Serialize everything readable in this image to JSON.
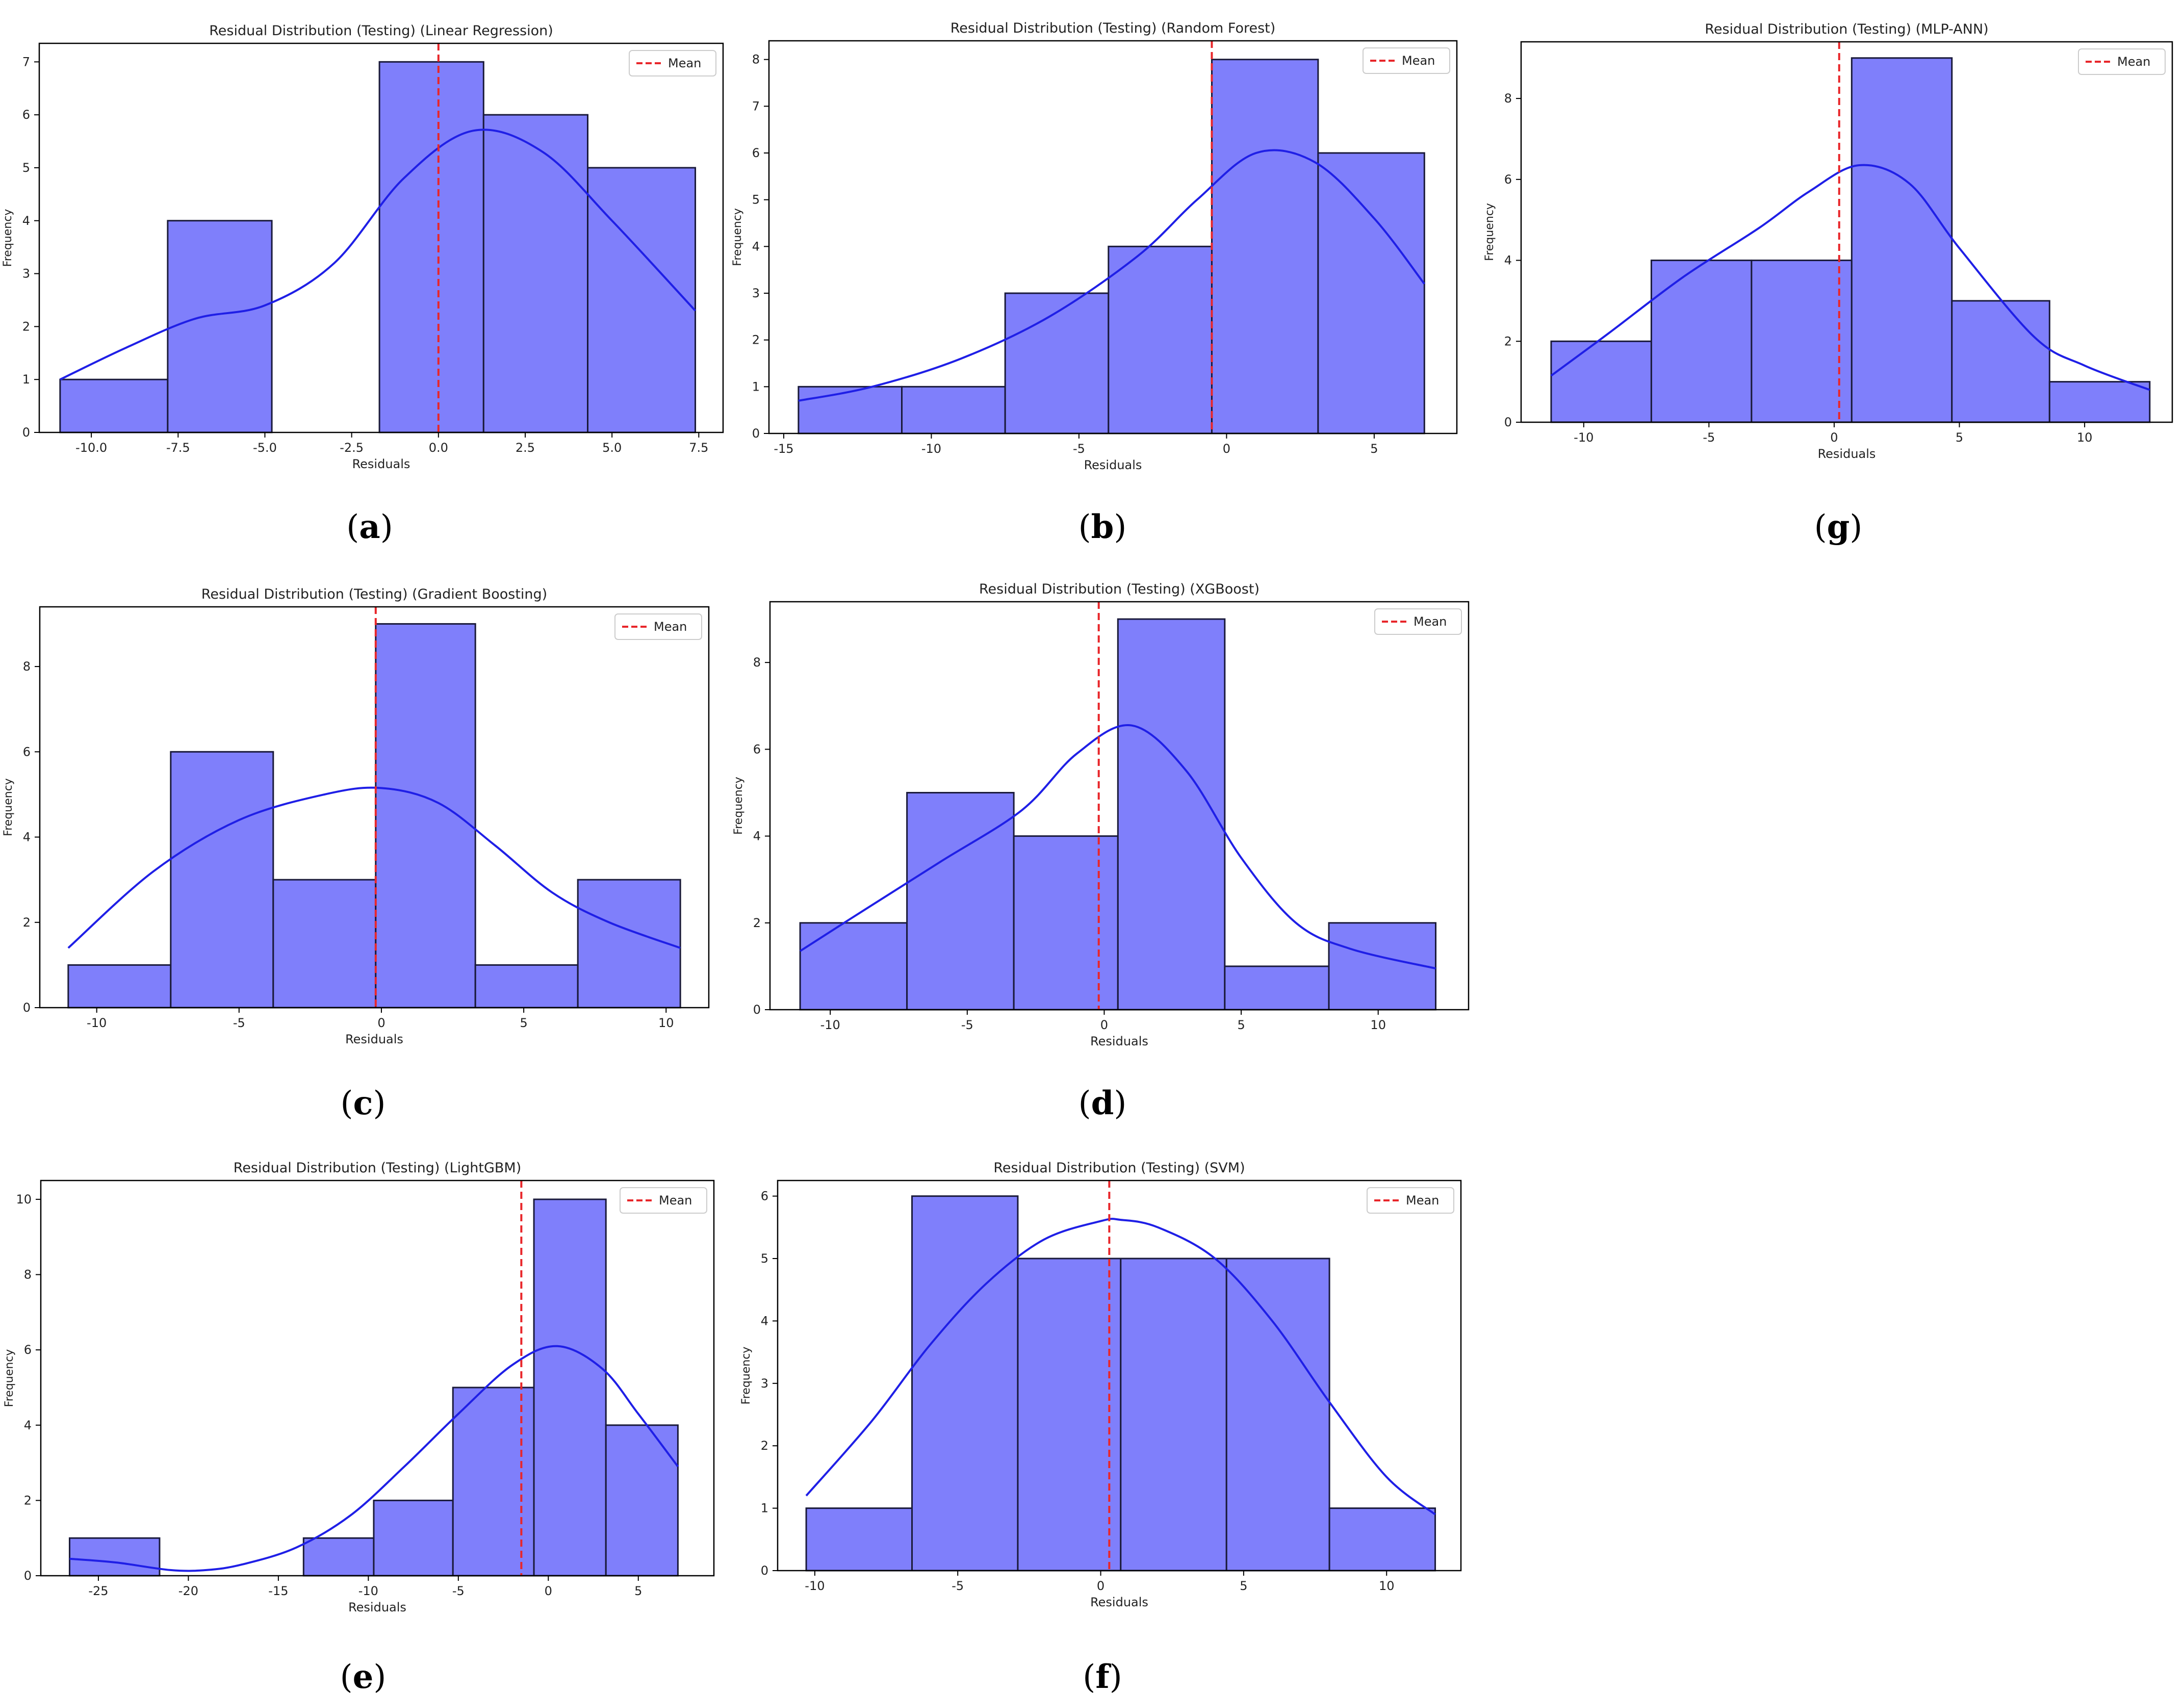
{
  "figure": {
    "panels": [
      {
        "id": "a",
        "label_open": "(",
        "label_letter": "a",
        "label_close": ")"
      },
      {
        "id": "b",
        "label_open": "(",
        "label_letter": "b",
        "label_close": ")"
      },
      {
        "id": "g",
        "label_open": "(",
        "label_letter": "g",
        "label_close": ")"
      },
      {
        "id": "c",
        "label_open": "(",
        "label_letter": "c",
        "label_close": ")"
      },
      {
        "id": "d",
        "label_open": "(",
        "label_letter": "d",
        "label_close": ")"
      },
      {
        "id": "e",
        "label_open": "(",
        "label_letter": "e",
        "label_close": ")"
      },
      {
        "id": "f",
        "label_open": "(",
        "label_letter": "f",
        "label_close": ")"
      }
    ],
    "colors": {
      "bar_fill": "#7f7ffb",
      "bar_edge": "#1a1a3a",
      "kde": "#1f1fe6",
      "mean": "#e8262a",
      "axis": "#000000",
      "text": "#222222"
    }
  },
  "chart_data": [
    {
      "id": "a",
      "type": "bar",
      "title": "Residual Distribution (Testing) (Linear Regression)",
      "xlabel": "Residuals",
      "ylabel": "Frequency",
      "xlim": [
        -11.5,
        8.2
      ],
      "ylim": [
        0,
        7.35
      ],
      "xticks": [
        -10.0,
        -7.5,
        -5.0,
        -2.5,
        0.0,
        2.5,
        5.0,
        7.5
      ],
      "xtick_labels": [
        "-10.0",
        "-7.5",
        "-5.0",
        "-2.5",
        "0.0",
        "2.5",
        "5.0",
        "7.5"
      ],
      "yticks": [
        0,
        1,
        2,
        3,
        4,
        5,
        6,
        7
      ],
      "ytick_labels": [
        "0",
        "1",
        "2",
        "3",
        "4",
        "5",
        "6",
        "7"
      ],
      "bin_edges": [
        -10.9,
        -7.8,
        -4.8,
        -1.7,
        1.3,
        4.3,
        7.4
      ],
      "counts": [
        1,
        4,
        0,
        7,
        6,
        5
      ],
      "mean": 0.0,
      "legend": "Mean",
      "kde": {
        "x": [
          -10.9,
          -9,
          -7,
          -5,
          -3,
          -1,
          1,
          3,
          5,
          7.4
        ],
        "y": [
          1.0,
          1.6,
          2.15,
          2.4,
          3.2,
          4.8,
          5.7,
          5.3,
          4.0,
          2.3
        ]
      }
    },
    {
      "id": "b",
      "type": "bar",
      "title": "Residual Distribution (Testing) (Random Forest)",
      "xlabel": "Residuals",
      "ylabel": "Frequency",
      "xlim": [
        -15.5,
        7.8
      ],
      "ylim": [
        0,
        8.4
      ],
      "xticks": [
        -15,
        -10,
        -5,
        0,
        5
      ],
      "xtick_labels": [
        "-15",
        "-10",
        "-5",
        "0",
        "5"
      ],
      "yticks": [
        0,
        1,
        2,
        3,
        4,
        5,
        6,
        7,
        8
      ],
      "ytick_labels": [
        "0",
        "1",
        "2",
        "3",
        "4",
        "5",
        "6",
        "7",
        "8"
      ],
      "bin_edges": [
        -14.5,
        -11.0,
        -7.5,
        -4.0,
        -0.5,
        3.1,
        6.7
      ],
      "counts": [
        1,
        1,
        3,
        4,
        8,
        6
      ],
      "mean": -0.5,
      "legend": "Mean",
      "kde": {
        "x": [
          -14.5,
          -12,
          -9,
          -6,
          -3,
          -1,
          1,
          3,
          5,
          6.7
        ],
        "y": [
          0.7,
          1.0,
          1.6,
          2.5,
          3.8,
          5.0,
          6.0,
          5.8,
          4.6,
          3.2
        ]
      }
    },
    {
      "id": "g",
      "type": "bar",
      "title": "Residual Distribution (Testing) (MLP-ANN)",
      "xlabel": "Residuals",
      "ylabel": "Frequency",
      "xlim": [
        -12.5,
        13.5
      ],
      "ylim": [
        0,
        9.4
      ],
      "xticks": [
        -10,
        -5,
        0,
        5,
        10
      ],
      "xtick_labels": [
        "-10",
        "-5",
        "0",
        "5",
        "10"
      ],
      "yticks": [
        0,
        2,
        4,
        6,
        8
      ],
      "ytick_labels": [
        "0",
        "2",
        "4",
        "6",
        "8"
      ],
      "bin_edges": [
        -11.3,
        -7.3,
        -3.3,
        0.7,
        4.7,
        8.6,
        12.6
      ],
      "counts": [
        2,
        4,
        4,
        9,
        3,
        1
      ],
      "mean": 0.2,
      "legend": "Mean",
      "kde": {
        "x": [
          -11.3,
          -9,
          -6,
          -3,
          -1,
          1,
          3,
          5,
          8,
          10,
          12.6
        ],
        "y": [
          1.15,
          2.2,
          3.6,
          4.8,
          5.7,
          6.35,
          5.9,
          4.3,
          2.1,
          1.4,
          0.8
        ]
      }
    },
    {
      "id": "c",
      "type": "bar",
      "title": "Residual Distribution (Testing) (Gradient Boosting)",
      "xlabel": "Residuals",
      "ylabel": "Frequency",
      "xlim": [
        -12.0,
        11.5
      ],
      "ylim": [
        0,
        9.4
      ],
      "xticks": [
        -10,
        -5,
        0,
        5,
        10
      ],
      "xtick_labels": [
        "-10",
        "-5",
        "0",
        "5",
        "10"
      ],
      "yticks": [
        0,
        2,
        4,
        6,
        8
      ],
      "ytick_labels": [
        "0",
        "2",
        "4",
        "6",
        "8"
      ],
      "bin_edges": [
        -11.0,
        -7.4,
        -3.8,
        -0.2,
        3.3,
        6.9,
        10.5
      ],
      "counts": [
        1,
        6,
        3,
        9,
        1,
        3
      ],
      "mean": -0.2,
      "legend": "Mean",
      "kde": {
        "x": [
          -11,
          -8,
          -5,
          -2,
          0,
          2,
          4,
          6,
          8,
          10.5
        ],
        "y": [
          1.4,
          3.2,
          4.4,
          5.0,
          5.15,
          4.8,
          3.8,
          2.7,
          2.0,
          1.4
        ]
      }
    },
    {
      "id": "d",
      "type": "bar",
      "title": "Residual Distribution (Testing) (XGBoost)",
      "xlabel": "Residuals",
      "ylabel": "Frequency",
      "xlim": [
        -12.2,
        13.3
      ],
      "ylim": [
        0,
        9.4
      ],
      "xticks": [
        -10,
        -5,
        0,
        5,
        10
      ],
      "xtick_labels": [
        "-10",
        "-5",
        "0",
        "5",
        "10"
      ],
      "yticks": [
        0,
        2,
        4,
        6,
        8
      ],
      "ytick_labels": [
        "0",
        "2",
        "4",
        "6",
        "8"
      ],
      "bin_edges": [
        -11.1,
        -7.2,
        -3.3,
        0.5,
        4.4,
        8.2,
        12.1
      ],
      "counts": [
        2,
        5,
        4,
        9,
        1,
        2
      ],
      "mean": -0.2,
      "legend": "Mean",
      "kde": {
        "x": [
          -11.1,
          -9,
          -6,
          -3,
          -1,
          1,
          3,
          5,
          7,
          9,
          12.1
        ],
        "y": [
          1.35,
          2.2,
          3.4,
          4.6,
          5.9,
          6.55,
          5.5,
          3.5,
          2.0,
          1.4,
          0.95
        ]
      }
    },
    {
      "id": "e",
      "type": "bar",
      "title": "Residual Distribution (Testing) (LightGBM)",
      "xlabel": "Residuals",
      "ylabel": "Frequency",
      "xlim": [
        -28.2,
        9.2
      ],
      "ylim": [
        0,
        10.5
      ],
      "xticks": [
        -25,
        -20,
        -15,
        -10,
        -5,
        0,
        5
      ],
      "xtick_labels": [
        "-25",
        "-20",
        "-15",
        "-10",
        "-5",
        "0",
        "5"
      ],
      "yticks": [
        0,
        2,
        4,
        6,
        8,
        10
      ],
      "ytick_labels": [
        "0",
        "2",
        "4",
        "6",
        "8",
        "10"
      ],
      "bin_edges": [
        -26.6,
        -21.6,
        -18.6,
        -13.6,
        -9.7,
        -5.3,
        -0.8,
        3.2,
        7.2
      ],
      "counts": [
        1,
        0,
        0,
        1,
        2,
        5,
        10,
        4
      ],
      "mean": -1.5,
      "legend": "Mean",
      "kde": {
        "x": [
          -26.6,
          -24,
          -21,
          -19,
          -17,
          -14,
          -11,
          -8,
          -5,
          -2,
          0.5,
          3,
          5,
          7.2
        ],
        "y": [
          0.45,
          0.35,
          0.15,
          0.15,
          0.3,
          0.75,
          1.6,
          2.9,
          4.3,
          5.6,
          6.1,
          5.5,
          4.3,
          2.9
        ]
      }
    },
    {
      "id": "f",
      "type": "bar",
      "title": "Residual Distribution (Testing) (SVM)",
      "xlabel": "Residuals",
      "ylabel": "Frequency",
      "xlim": [
        -11.3,
        12.6
      ],
      "ylim": [
        0,
        6.25
      ],
      "xticks": [
        -10,
        -5,
        0,
        5,
        10
      ],
      "xtick_labels": [
        "-10",
        "-5",
        "0",
        "5",
        "10"
      ],
      "yticks": [
        0,
        1,
        2,
        3,
        4,
        5,
        6
      ],
      "ytick_labels": [
        "0",
        "1",
        "2",
        "3",
        "4",
        "5",
        "6"
      ],
      "bin_edges": [
        -10.3,
        -6.6,
        -2.9,
        0.7,
        4.4,
        8.0,
        11.7
      ],
      "counts": [
        1,
        6,
        5,
        5,
        5,
        1
      ],
      "mean": 0.3,
      "legend": "Mean",
      "kde": {
        "x": [
          -10.3,
          -8,
          -6,
          -4,
          -2,
          0,
          0.7,
          2,
          4,
          6,
          8,
          10,
          11.7
        ],
        "y": [
          1.2,
          2.4,
          3.6,
          4.6,
          5.3,
          5.6,
          5.62,
          5.5,
          5.0,
          4.0,
          2.7,
          1.5,
          0.9
        ]
      }
    }
  ]
}
